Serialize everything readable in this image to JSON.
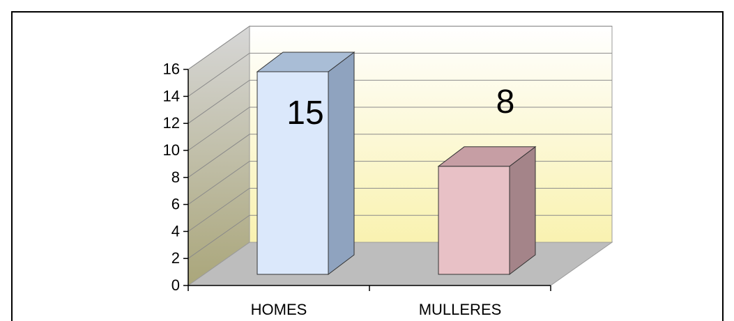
{
  "chart_data": {
    "type": "bar",
    "categories": [
      "HOMES",
      "MULLERES"
    ],
    "values": [
      15,
      8
    ],
    "data_labels": [
      "15",
      "8"
    ],
    "ylim": [
      0,
      16
    ],
    "yticks": [
      0,
      2,
      4,
      6,
      8,
      10,
      12,
      14,
      16
    ],
    "ytick_labels": [
      "0",
      "2",
      "4",
      "6",
      "8",
      "10",
      "12",
      "14",
      "16"
    ],
    "grid": true,
    "three_d": true,
    "legend": "none",
    "colors": {
      "bar_homes_front": "#dbe8fb",
      "bar_homes_side": "#8fa3bf",
      "bar_homes_top": "#a9bdd6",
      "bar_mulleres_front": "#e8c1c6",
      "bar_mulleres_side": "#a48489",
      "bar_mulleres_top": "#c69ea4",
      "back_wall_top": "#ffffff",
      "back_wall_bottom": "#f9f2b0",
      "side_wall_top": "#d7d7d7",
      "side_wall_bottom": "#aaa67a",
      "floor": "#bdbdbd",
      "gridline": "#8a8a8a",
      "axis": "#000000",
      "frame": "#000000"
    }
  }
}
